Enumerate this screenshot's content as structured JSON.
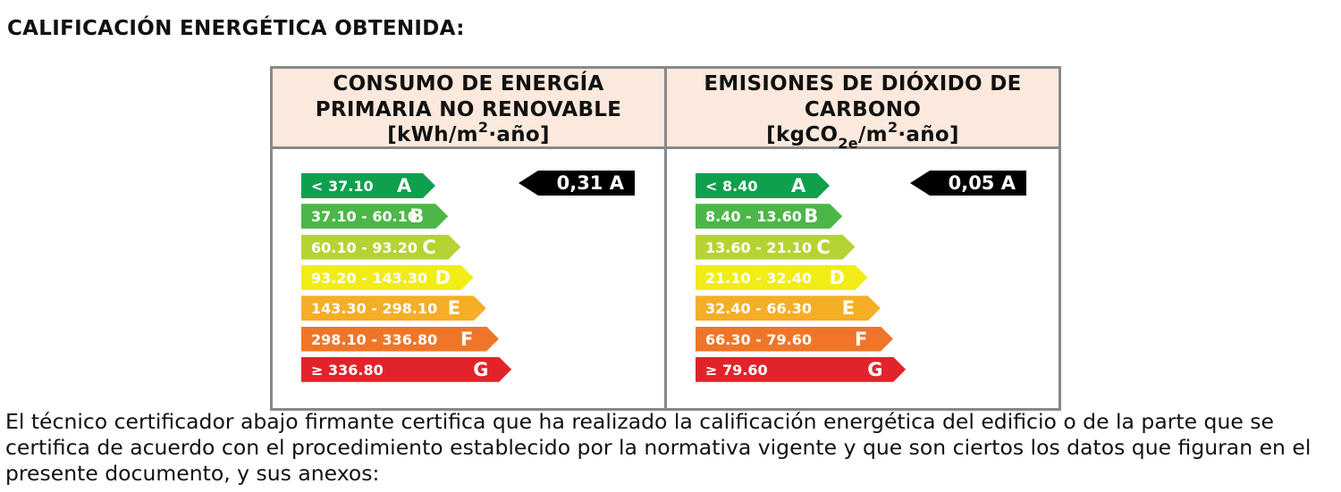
{
  "heading": "CALIFICACIÓN ENERGÉTICA OBTENIDA:",
  "panels": {
    "consumption": {
      "title_line1": "CONSUMO DE ENERGÍA",
      "title_line2": "PRIMARIA NO RENOVABLE",
      "unit_pre": "[kWh/m",
      "unit_sup": "2",
      "unit_post": "·año]",
      "rating": "0,31 A",
      "bands": [
        {
          "range": "< 37.10",
          "letter": "A",
          "color": "#0fa04e"
        },
        {
          "range": "37.10 - 60.10",
          "letter": "B",
          "color": "#4cb748"
        },
        {
          "range": "60.10 - 93.20",
          "letter": "C",
          "color": "#b6d334"
        },
        {
          "range": "93.20 - 143.30",
          "letter": "D",
          "color": "#f2ec17"
        },
        {
          "range": "143.30 - 298.10",
          "letter": "E",
          "color": "#f5ae26"
        },
        {
          "range": "298.10 - 336.80",
          "letter": "F",
          "color": "#ef7628"
        },
        {
          "range": "≥ 336.80",
          "letter": "G",
          "color": "#e3232b"
        }
      ]
    },
    "emissions": {
      "title_line1": "EMISIONES DE DIÓXIDO DE",
      "title_line2": "CARBONO",
      "unit_pre": "[kgCO",
      "unit_sub": "2e",
      "unit_mid": "/m",
      "unit_sup": "2",
      "unit_post": "·año]",
      "rating": "0,05 A",
      "bands": [
        {
          "range": "< 8.40",
          "letter": "A",
          "color": "#0fa04e"
        },
        {
          "range": "8.40 - 13.60",
          "letter": "B",
          "color": "#4cb748"
        },
        {
          "range": "13.60 - 21.10",
          "letter": "C",
          "color": "#b6d334"
        },
        {
          "range": "21.10 - 32.40",
          "letter": "D",
          "color": "#f2ec17"
        },
        {
          "range": "32.40 - 66.30",
          "letter": "E",
          "color": "#f5ae26"
        },
        {
          "range": "66.30 - 79.60",
          "letter": "F",
          "color": "#ef7628"
        },
        {
          "range": "≥ 79.60",
          "letter": "G",
          "color": "#e3232b"
        }
      ]
    }
  },
  "certification_text": "El técnico certificador abajo firmante certifica que ha realizado la calificación energética del edificio o de la parte que se certifica de acuerdo con el procedimiento establecido por la normativa vigente y que son ciertos los datos que figuran en el presente documento, y sus anexos:"
}
